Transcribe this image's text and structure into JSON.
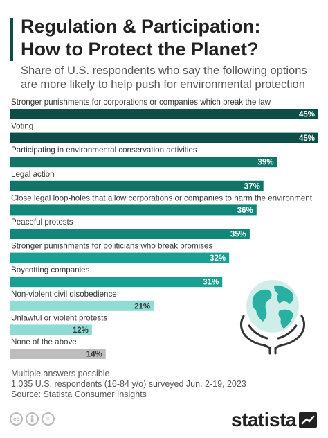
{
  "header": {
    "title_line1": "Regulation & Participation:",
    "title_line2": "How to Protect the Planet?",
    "subtitle_line1": "Share of U.S. respondents who say the following options",
    "subtitle_line2": "are more likely to help push for environmental protection"
  },
  "chart_data": {
    "type": "bar",
    "orientation": "horizontal",
    "categories": [
      "Stronger punishments for corporations or companies which break the law",
      "Voting",
      "Participating in environmental conservation activities",
      "Legal action",
      "Close legal loop-holes that allow corporations or companies to harm the environment",
      "Peaceful protests",
      "Stronger punishments for politicians who break promises",
      "Boycotting companies",
      "Non-violent civil disobedience",
      "Unlawful or violent protests",
      "None of the above"
    ],
    "values": [
      45,
      45,
      39,
      37,
      36,
      35,
      32,
      31,
      21,
      12,
      14
    ],
    "value_labels": [
      "45%",
      "45%",
      "39%",
      "37%",
      "36%",
      "35%",
      "32%",
      "31%",
      "21%",
      "12%",
      "14%"
    ],
    "colors": [
      "#0d4f47",
      "#0d4f47",
      "#107567",
      "#107567",
      "#11877a",
      "#11877a",
      "#1a9f93",
      "#1a9f93",
      "#8fdcd5",
      "#8fdcd5",
      "#bdbdbd"
    ],
    "xlim": [
      0,
      45
    ],
    "grid": false,
    "legend": "none"
  },
  "footer": {
    "note": "Multiple answers possible",
    "sample": "1,035 U.S. respondents (16-84 y/o) surveyed Jun. 2-19, 2023",
    "source": "Source: Statista Consumer Insights"
  },
  "license_icons": [
    "cc",
    "person",
    "="
  ],
  "brand": {
    "logo": "statista"
  }
}
